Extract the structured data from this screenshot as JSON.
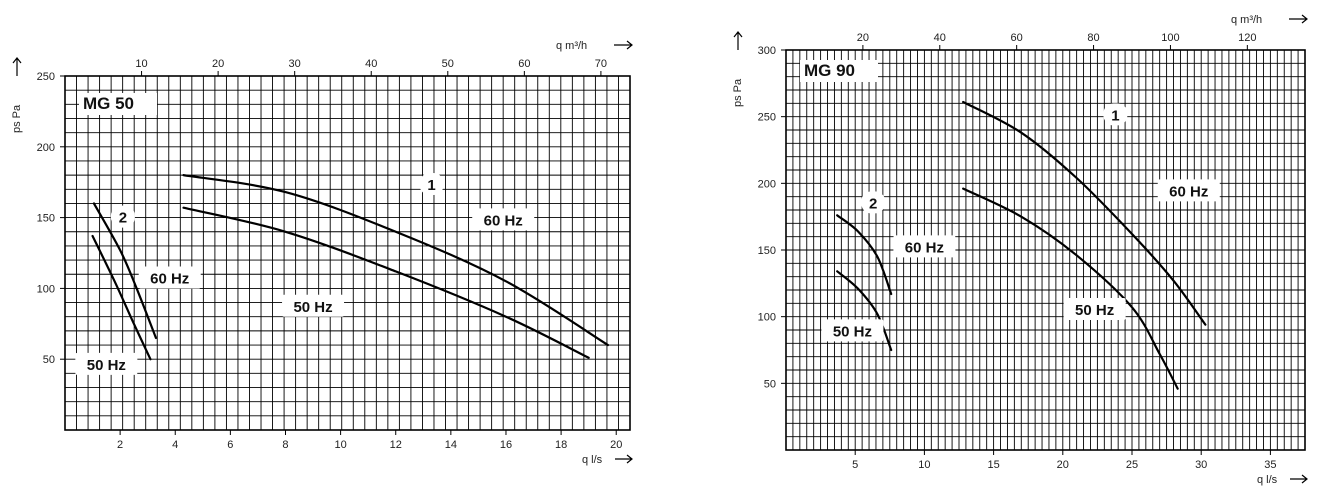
{
  "chart_data": [
    {
      "type": "line",
      "title": "MG 50",
      "xlabel": "q l/s",
      "ylabel": "ps Pa",
      "x2label": "q m³/h",
      "xlim": [
        0,
        20.5
      ],
      "ylim": [
        0,
        250
      ],
      "x_ticks": [
        2,
        4,
        6,
        8,
        10,
        12,
        14,
        16,
        18,
        20
      ],
      "y_ticks": [
        50,
        100,
        150,
        200,
        250
      ],
      "x2_ticks": [
        10,
        20,
        30,
        40,
        50,
        60,
        70
      ],
      "grid": true,
      "series": [
        {
          "name": "2",
          "label": "60 Hz",
          "x": [
            1.05,
            2.0,
            2.6,
            3.3
          ],
          "y": [
            160,
            127,
            100,
            65
          ]
        },
        {
          "name": "2",
          "label": "50 Hz",
          "x": [
            1.0,
            1.8,
            2.5,
            3.1
          ],
          "y": [
            137,
            105,
            75,
            50
          ]
        },
        {
          "name": "1",
          "label": "60 Hz",
          "x": [
            4.3,
            8.0,
            12.0,
            16.0,
            19.7
          ],
          "y": [
            180,
            168,
            140,
            105,
            60
          ]
        },
        {
          "name": "1",
          "label": "50 Hz",
          "x": [
            4.3,
            8.0,
            12.0,
            16.0,
            19.0
          ],
          "y": [
            157,
            140,
            112,
            80,
            51
          ]
        }
      ],
      "annotations": [
        {
          "text": "1",
          "x": 13.3,
          "y": 173
        },
        {
          "text": "60 Hz",
          "x": 15.9,
          "y": 148
        },
        {
          "text": "50 Hz",
          "x": 9.0,
          "y": 87
        },
        {
          "text": "2",
          "x": 2.1,
          "y": 150
        },
        {
          "text": "60 Hz",
          "x": 3.8,
          "y": 107
        },
        {
          "text": "50 Hz",
          "x": 1.5,
          "y": 46
        }
      ]
    },
    {
      "type": "line",
      "title": "MG 90",
      "xlabel": "q l/s",
      "ylabel": "ps Pa",
      "x2label": "q m³/h",
      "xlim": [
        0,
        37.5
      ],
      "ylim": [
        0,
        300
      ],
      "x_ticks": [
        5,
        10,
        15,
        20,
        25,
        30,
        35
      ],
      "y_ticks": [
        50,
        100,
        150,
        200,
        250,
        300
      ],
      "x2_ticks": [
        20,
        40,
        60,
        80,
        100,
        120
      ],
      "grid": true,
      "series": [
        {
          "name": "1",
          "label": "60 Hz",
          "x": [
            12.8,
            17.0,
            21.0,
            25.0,
            28.0,
            30.3
          ],
          "y": [
            261,
            238,
            204,
            162,
            127,
            94
          ]
        },
        {
          "name": "1",
          "label": "50 Hz",
          "x": [
            12.8,
            17.0,
            21.0,
            25.0,
            27.0,
            28.3
          ],
          "y": [
            196,
            175,
            146,
            107,
            72,
            46
          ]
        },
        {
          "name": "2",
          "label": "60 Hz",
          "x": [
            3.7,
            5.2,
            6.6,
            7.6
          ],
          "y": [
            176,
            164,
            145,
            117
          ]
        },
        {
          "name": "2",
          "label": "50 Hz",
          "x": [
            3.7,
            5.2,
            6.6,
            7.6
          ],
          "y": [
            134,
            121,
            102,
            75
          ]
        }
      ],
      "annotations": [
        {
          "text": "1",
          "x": 23.8,
          "y": 251
        },
        {
          "text": "60 Hz",
          "x": 29.1,
          "y": 194
        },
        {
          "text": "50 Hz",
          "x": 22.3,
          "y": 105
        },
        {
          "text": "2",
          "x": 6.3,
          "y": 185
        },
        {
          "text": "60 Hz",
          "x": 10.0,
          "y": 152
        },
        {
          "text": "50 Hz",
          "x": 4.8,
          "y": 89
        }
      ]
    }
  ]
}
